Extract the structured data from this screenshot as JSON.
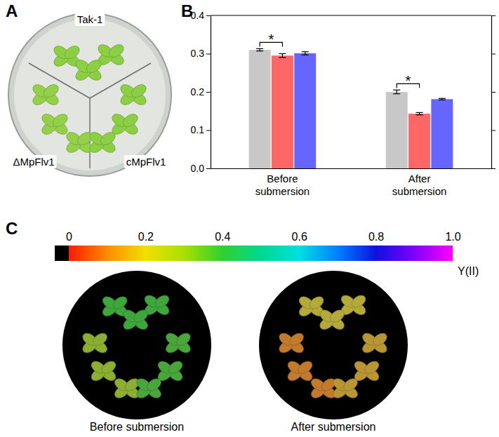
{
  "panel_labels": [
    "A",
    "B",
    "C"
  ],
  "panel_a": {
    "labels": [
      "Tak-1",
      "ΔMpFlv1",
      "cMpFlv1"
    ]
  },
  "chart_data": {
    "type": "bar",
    "categories": [
      "Before submersion",
      "After submersion"
    ],
    "series": [
      {
        "color": "#c8c8c8",
        "values": [
          0.31,
          0.2
        ],
        "errors": [
          0.003,
          0.005
        ]
      },
      {
        "color": "#ff6666",
        "values": [
          0.295,
          0.143
        ],
        "errors": [
          0.005,
          0.003
        ]
      },
      {
        "color": "#6666ff",
        "values": [
          0.301,
          0.181
        ],
        "errors": [
          0.004,
          0.002
        ]
      }
    ],
    "ylim": [
      0,
      0.4
    ],
    "yticks": [
      {
        "value": 0,
        "label": "0.0"
      },
      0.1,
      0.2,
      0.3,
      0.4
    ],
    "annotations": [
      {
        "text": "*",
        "category": 0,
        "series": [
          0,
          1
        ]
      },
      {
        "text": "*",
        "category": 1,
        "series": [
          0,
          1
        ]
      }
    ]
  },
  "panel_c": {
    "colorbar": {
      "label": "Y(II)",
      "range": [
        0,
        1
      ],
      "ticks": [
        0,
        0.2,
        0.4,
        0.6,
        0.8,
        {
          "value": 1,
          "label": "1.0"
        }
      ]
    },
    "images": [
      "Before submersion",
      "After submersion"
    ]
  }
}
